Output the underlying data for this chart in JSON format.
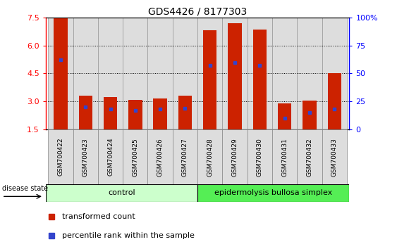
{
  "title": "GDS4426 / 8177303",
  "samples": [
    "GSM700422",
    "GSM700423",
    "GSM700424",
    "GSM700425",
    "GSM700426",
    "GSM700427",
    "GSM700428",
    "GSM700429",
    "GSM700430",
    "GSM700431",
    "GSM700432",
    "GSM700433"
  ],
  "transformed_count": [
    7.5,
    3.3,
    3.25,
    3.1,
    3.15,
    3.3,
    6.8,
    7.2,
    6.85,
    2.9,
    3.05,
    4.5
  ],
  "percentile_rank": [
    62,
    20,
    18,
    17,
    18,
    19,
    57,
    60,
    57,
    10,
    15,
    18
  ],
  "ymin": 1.5,
  "ymax": 7.5,
  "y_ticks_left": [
    1.5,
    3.0,
    4.5,
    6.0,
    7.5
  ],
  "y_ticks_right": [
    0,
    25,
    50,
    75,
    100
  ],
  "bar_color": "#CC2200",
  "blue_color": "#3344CC",
  "control_label": "control",
  "disease_label": "epidermolysis bullosa simplex",
  "control_bg": "#CCFFCC",
  "disease_bg": "#55EE55",
  "sample_bg": "#DDDDDD",
  "legend_items": [
    "transformed count",
    "percentile rank within the sample"
  ],
  "disease_state_label": "disease state",
  "bar_width": 0.55,
  "n_control": 6,
  "n_disease": 6
}
